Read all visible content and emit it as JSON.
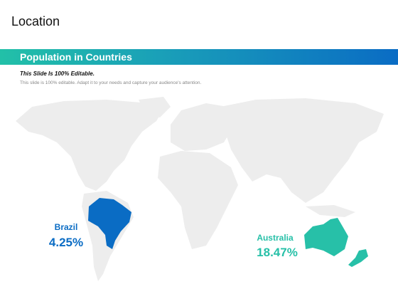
{
  "header": {
    "title": "Location"
  },
  "banner": {
    "title": "Population in Countries"
  },
  "intro": {
    "heading": "This Slide Is 100% Editable.",
    "text": "This slide is 100% editable. Adapt it to your needs and capture your audience's attention."
  },
  "markers": [
    {
      "country": "Brazil",
      "value": "4.25%"
    },
    {
      "country": "Australia",
      "value": "18.47%"
    }
  ]
}
